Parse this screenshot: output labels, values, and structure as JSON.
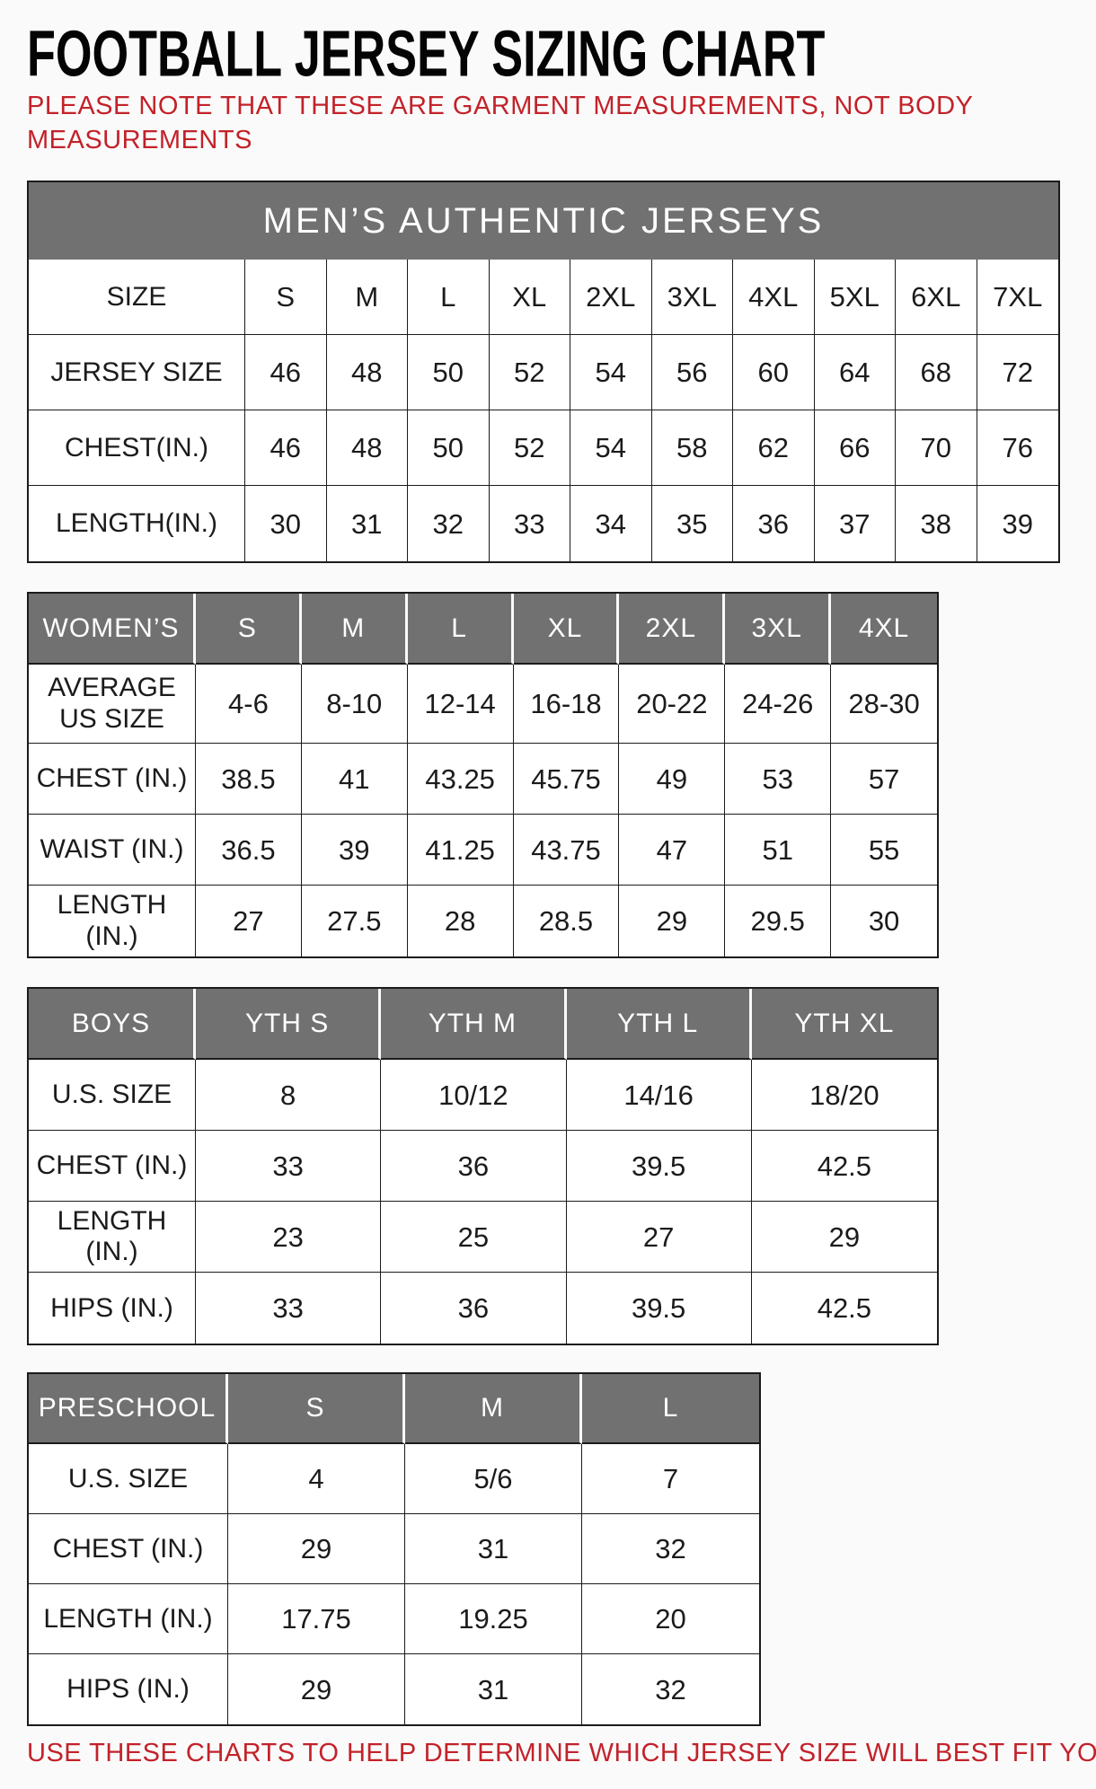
{
  "page": {
    "title": "FOOTBALL JERSEY SIZING CHART",
    "note": "PLEASE NOTE THAT THESE ARE GARMENT MEASUREMENTS, NOT BODY MEASUREMENTS",
    "footer": "USE THESE CHARTS TO HELP DETERMINE WHICH JERSEY SIZE WILL BEST FIT YOU."
  },
  "colors": {
    "accent_red": "#c2222a",
    "header_gray": "#717171"
  },
  "tables": {
    "mens": {
      "banner": "MEN’S AUTHENTIC JERSEYS",
      "rows": [
        {
          "label": "SIZE",
          "values": [
            "S",
            "M",
            "L",
            "XL",
            "2XL",
            "3XL",
            "4XL",
            "5XL",
            "6XL",
            "7XL"
          ]
        },
        {
          "label": "JERSEY SIZE",
          "values": [
            "46",
            "48",
            "50",
            "52",
            "54",
            "56",
            "60",
            "64",
            "68",
            "72"
          ]
        },
        {
          "label": "CHEST(IN.)",
          "values": [
            "46",
            "48",
            "50",
            "52",
            "54",
            "58",
            "62",
            "66",
            "70",
            "76"
          ]
        },
        {
          "label": "LENGTH(IN.)",
          "values": [
            "30",
            "31",
            "32",
            "33",
            "34",
            "35",
            "36",
            "37",
            "38",
            "39"
          ]
        }
      ]
    },
    "womens": {
      "rows": [
        {
          "type": "head",
          "label": "WOMEN’S",
          "values": [
            "S",
            "M",
            "L",
            "XL",
            "2XL",
            "3XL",
            "4XL"
          ]
        },
        {
          "label": "AVERAGE US SIZE",
          "values": [
            "4-6",
            "8-10",
            "12-14",
            "16-18",
            "20-22",
            "24-26",
            "28-30"
          ]
        },
        {
          "label": "CHEST (IN.)",
          "values": [
            "38.5",
            "41",
            "43.25",
            "45.75",
            "49",
            "53",
            "57"
          ]
        },
        {
          "label": "WAIST (IN.)",
          "values": [
            "36.5",
            "39",
            "41.25",
            "43.75",
            "47",
            "51",
            "55"
          ]
        },
        {
          "label": "LENGTH (IN.)",
          "values": [
            "27",
            "27.5",
            "28",
            "28.5",
            "29",
            "29.5",
            "30"
          ]
        }
      ]
    },
    "boys": {
      "rows": [
        {
          "type": "head",
          "label": "BOYS",
          "values": [
            "YTH S",
            "YTH M",
            "YTH L",
            "YTH XL"
          ]
        },
        {
          "label": "U.S. SIZE",
          "values": [
            "8",
            "10/12",
            "14/16",
            "18/20"
          ]
        },
        {
          "label": "CHEST (IN.)",
          "values": [
            "33",
            "36",
            "39.5",
            "42.5"
          ]
        },
        {
          "label": "LENGTH (IN.)",
          "values": [
            "23",
            "25",
            "27",
            "29"
          ]
        },
        {
          "label": "HIPS (IN.)",
          "values": [
            "33",
            "36",
            "39.5",
            "42.5"
          ]
        }
      ]
    },
    "preschool": {
      "rows": [
        {
          "type": "head",
          "label": "PRESCHOOL",
          "values": [
            "S",
            "M",
            "L"
          ]
        },
        {
          "label": "U.S. SIZE",
          "values": [
            "4",
            "5/6",
            "7"
          ]
        },
        {
          "label": "CHEST (IN.)",
          "values": [
            "29",
            "31",
            "32"
          ]
        },
        {
          "label": "LENGTH (IN.)",
          "values": [
            "17.75",
            "19.25",
            "20"
          ]
        },
        {
          "label": "HIPS (IN.)",
          "values": [
            "29",
            "31",
            "32"
          ]
        }
      ]
    }
  }
}
